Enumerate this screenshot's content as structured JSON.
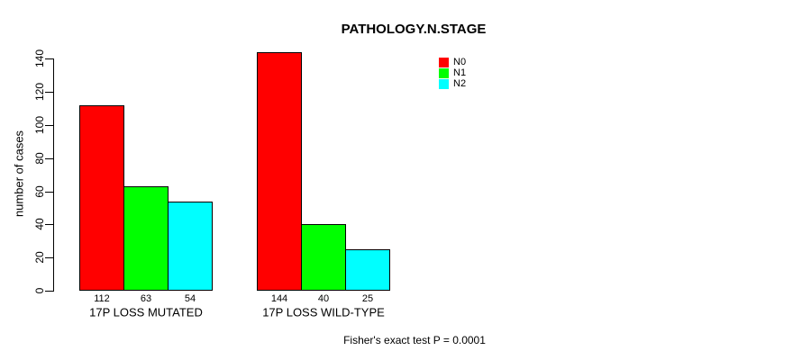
{
  "title": "PATHOLOGY.N.STAGE",
  "colors": {
    "background": "#ffffff",
    "axis": "#000000",
    "text": "#000000",
    "bar_border": "#000000",
    "n0": "#ff0000",
    "n1": "#00ff00",
    "n2": "#00ffff"
  },
  "chart_data": {
    "type": "bar",
    "title": "PATHOLOGY.N.STAGE",
    "xlabel": "",
    "ylabel": "number of cases",
    "categories": [
      "17P LOSS MUTATED",
      "17P LOSS WILD-TYPE"
    ],
    "series": [
      {
        "name": "N0",
        "color": "#ff0000",
        "values": [
          112,
          144
        ]
      },
      {
        "name": "N1",
        "color": "#00ff00",
        "values": [
          63,
          40
        ]
      },
      {
        "name": "N2",
        "color": "#00ffff",
        "values": [
          54,
          25
        ]
      }
    ],
    "bar_value_labels": [
      [
        112,
        63,
        54
      ],
      [
        144,
        40,
        25
      ]
    ],
    "ylim": [
      0,
      140
    ],
    "yticks": [
      0,
      20,
      40,
      60,
      80,
      100,
      120,
      140
    ],
    "grid": false,
    "legend": {
      "position": "top-right",
      "entries": [
        {
          "label": "N0",
          "color": "#ff0000"
        },
        {
          "label": "N1",
          "color": "#00ff00"
        },
        {
          "label": "N2",
          "color": "#00ffff"
        }
      ]
    },
    "annotation": "Fisher's exact test P = 0.0001"
  }
}
